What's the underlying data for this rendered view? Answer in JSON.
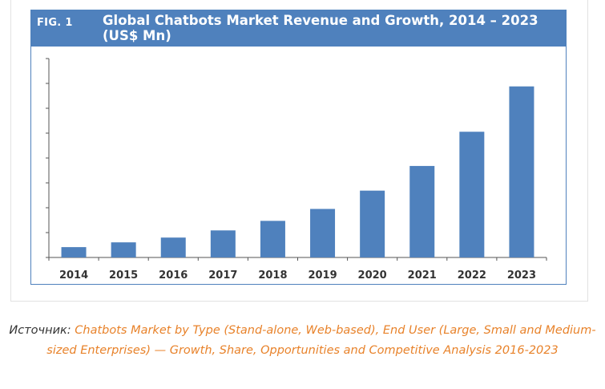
{
  "figure": {
    "label": "FIG. 1",
    "title": "Global Chatbots Market Revenue and Growth, 2014 – 2023 (US$ Mn)"
  },
  "chart_data": {
    "type": "bar",
    "title": "Global Chatbots Market Revenue and Growth, 2014 – 2023 (US$ Mn)",
    "xlabel": "",
    "ylabel": "",
    "categories": [
      "2014",
      "2015",
      "2016",
      "2017",
      "2018",
      "2019",
      "2020",
      "2021",
      "2022",
      "2023"
    ],
    "values": [
      13,
      19,
      25,
      34,
      46,
      61,
      84,
      115,
      158,
      215
    ],
    "ylim": [
      0,
      250
    ],
    "yticks": [
      0,
      31.25,
      62.5,
      93.75,
      125,
      156.25,
      187.5,
      218.75,
      250
    ],
    "show_tick_labels_y": false,
    "grid": false,
    "colors": {
      "bar": "#4f81bd",
      "axis": "#555555"
    }
  },
  "caption": {
    "source_label": "Источник: ",
    "source_text": "Chatbots Market by Type (Stand-alone, Web-based), End User (Large, Small and Medium-sized Enterprises) — Growth, Share, Opportunities and Competitive Analysis 2016-2023"
  },
  "colors": {
    "header_bg": "#4f81bd",
    "link": "#e8822a"
  }
}
